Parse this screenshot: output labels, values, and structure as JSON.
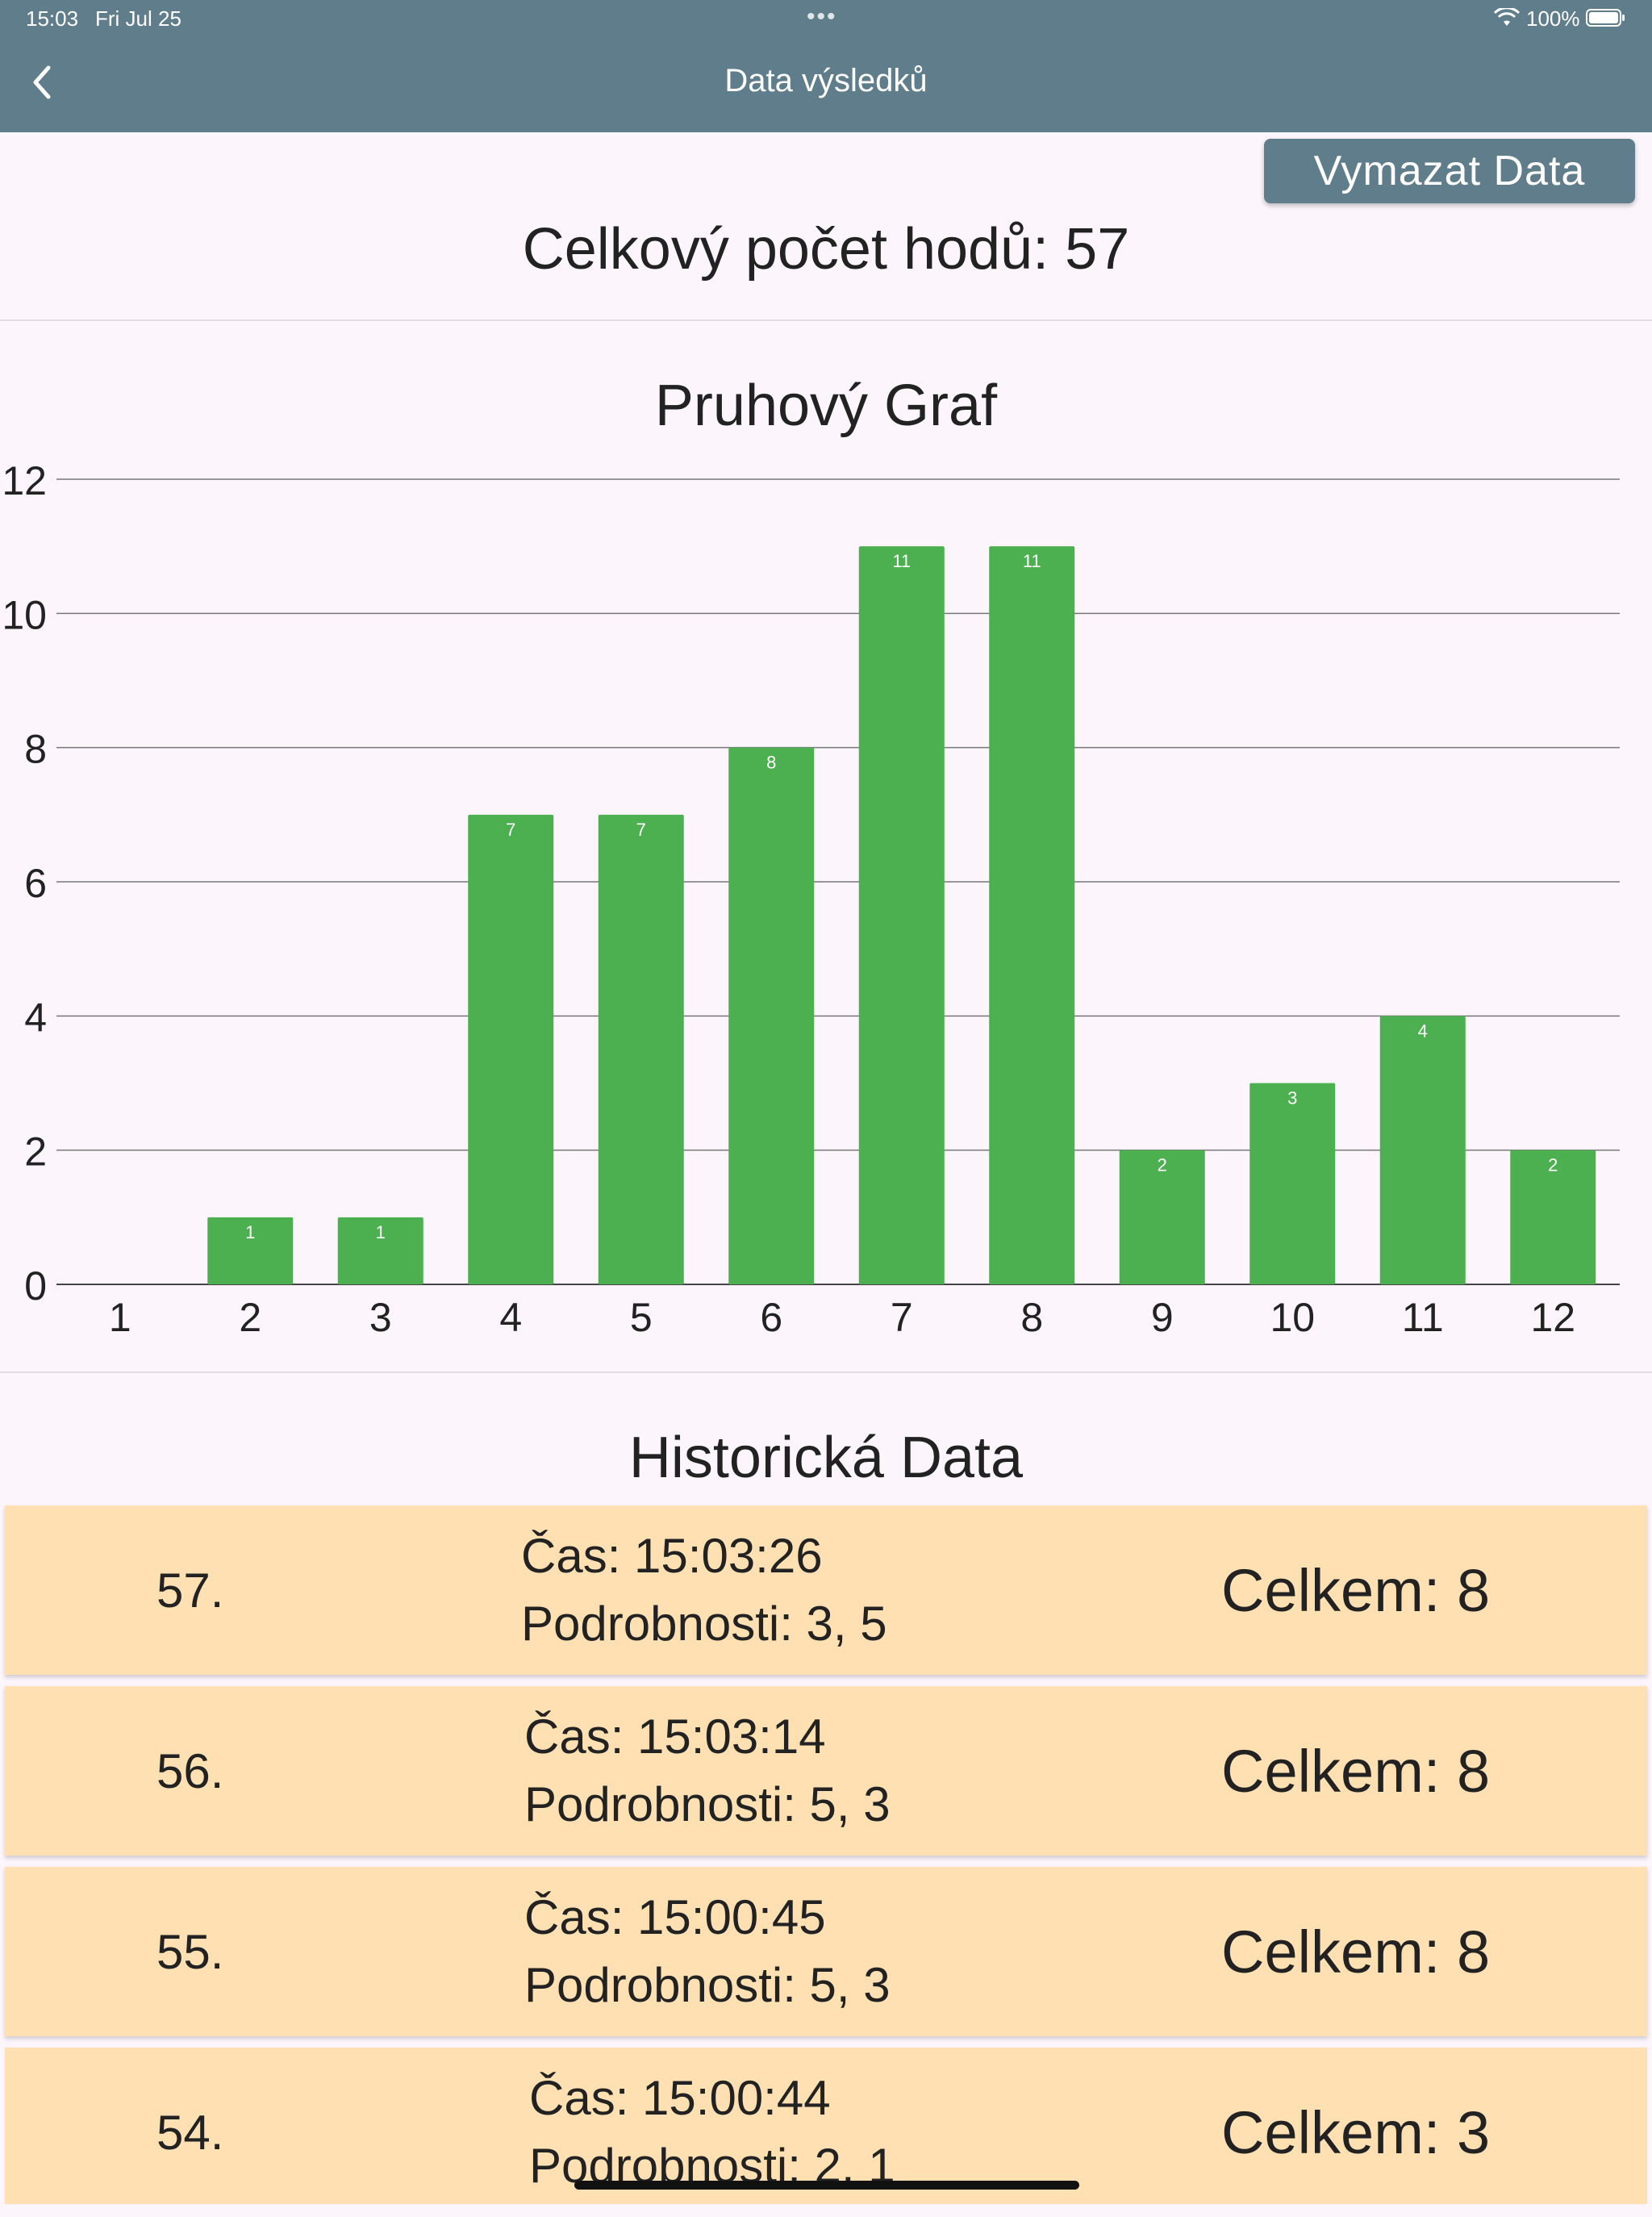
{
  "status_bar": {
    "time": "15:03",
    "date": "Fri Jul 25",
    "dots": "•••",
    "battery": "100%"
  },
  "app_bar": {
    "title": "Data výsledků"
  },
  "clear_button": {
    "label": "Vymazat Data"
  },
  "summary": {
    "total_throws": "Celkový počet hodů: 57"
  },
  "chart_title": "Pruhový Graf",
  "chart_data": {
    "type": "bar",
    "categories": [
      "1",
      "2",
      "3",
      "4",
      "5",
      "6",
      "7",
      "8",
      "9",
      "10",
      "11",
      "12"
    ],
    "values": [
      0,
      1,
      1,
      7,
      7,
      8,
      11,
      11,
      2,
      3,
      4,
      2
    ],
    "ylim": [
      0,
      12
    ],
    "yticks": [
      0,
      2,
      4,
      6,
      8,
      10,
      12
    ],
    "grid": true,
    "bar_color": "#4caf50",
    "title": "",
    "xlabel": "",
    "ylabel": ""
  },
  "history": {
    "title": "Historická Data",
    "rows": [
      {
        "index": "57.",
        "time": "Čas: 15:03:26",
        "details": "Podrobnosti: 3, 5",
        "total": "Celkem: 8"
      },
      {
        "index": "56.",
        "time": "Čas: 15:03:14",
        "details": "Podrobnosti: 5, 3",
        "total": "Celkem: 8"
      },
      {
        "index": "55.",
        "time": "Čas: 15:00:45",
        "details": "Podrobnosti: 5, 3",
        "total": "Celkem: 8"
      },
      {
        "index": "54.",
        "time": "Čas: 15:00:44",
        "details": "Podrobnosti: 2, 1",
        "total": "Celkem: 3"
      }
    ]
  },
  "colors": {
    "app_bar": "#607d8b",
    "row_bg": "#ffe0b2",
    "page_bg": "#fcf6fc"
  }
}
